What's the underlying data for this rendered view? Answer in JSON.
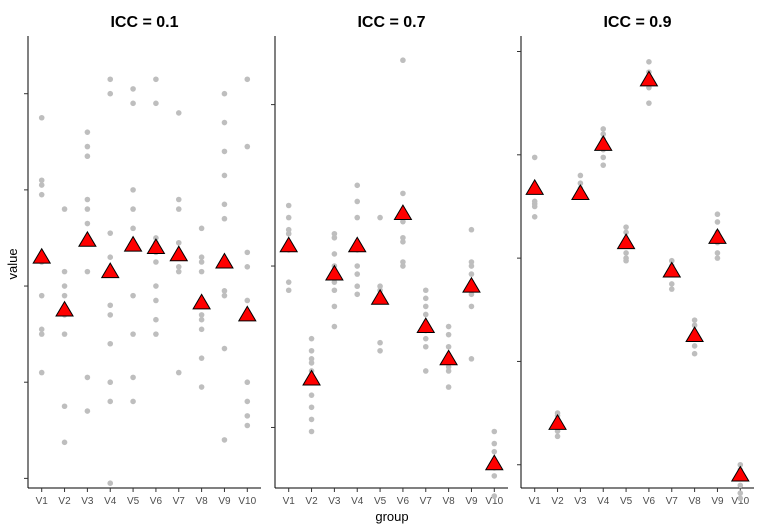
{
  "chart_data": {
    "type": "scatter",
    "xlabel": "group",
    "ylabel": "value",
    "categories": [
      "V1",
      "V2",
      "V3",
      "V4",
      "V5",
      "V6",
      "V7",
      "V8",
      "V9",
      "V10"
    ],
    "colors": {
      "raw_points": "#bebebe",
      "group_means": "#ff0000",
      "marker_outline": "#000000",
      "axis": "#000000"
    },
    "y_tick_labels_shown": false,
    "panels": [
      {
        "title": "ICC =  0.1",
        "ylim": [
          -4.2,
          5.2
        ],
        "means": [
          0.6,
          -0.5,
          0.95,
          0.3,
          0.85,
          0.8,
          0.65,
          -0.35,
          0.5,
          -0.6
        ],
        "points": [
          [
            3.5,
            2.2,
            2.1,
            1.9,
            0.5,
            -0.2,
            -0.9,
            -1.0,
            -1.8
          ],
          [
            1.6,
            0.3,
            0.0,
            -0.2,
            -0.6,
            -1.0,
            -2.5,
            -3.25
          ],
          [
            3.2,
            2.9,
            2.7,
            1.8,
            1.6,
            1.3,
            1.0,
            0.3,
            -1.9,
            -2.6
          ],
          [
            4.3,
            4.0,
            1.1,
            0.6,
            -0.4,
            -0.6,
            -1.2,
            -2.0,
            -2.4,
            -4.1
          ],
          [
            4.1,
            3.8,
            2.0,
            1.6,
            1.2,
            0.9,
            -0.2,
            -1.0,
            -1.9,
            -2.4
          ],
          [
            4.3,
            3.8,
            1.0,
            0.9,
            0.7,
            0.5,
            0.0,
            -0.3,
            -0.7,
            -1.0
          ],
          [
            3.6,
            1.8,
            1.6,
            0.9,
            0.4,
            0.3,
            -1.8
          ],
          [
            1.2,
            0.6,
            0.5,
            0.3,
            -0.6,
            -0.7,
            -0.9,
            -1.5,
            -2.1
          ],
          [
            4.0,
            3.4,
            2.8,
            2.3,
            1.7,
            1.4,
            -0.1,
            -0.2,
            -1.3,
            -3.2
          ],
          [
            4.3,
            2.9,
            0.7,
            0.4,
            -0.3,
            -2.0,
            -2.4,
            -2.7,
            -2.9
          ]
        ]
      },
      {
        "title": "ICC =  0.7",
        "ylim": [
          -2.75,
          2.85
        ],
        "means": [
          0.25,
          -1.4,
          -0.1,
          0.25,
          -0.4,
          0.65,
          -0.75,
          -1.15,
          -0.25,
          -2.45
        ],
        "points": [
          [
            0.75,
            0.6,
            0.45,
            0.4,
            0.3,
            0.2,
            -0.2,
            -0.3
          ],
          [
            -0.9,
            -1.05,
            -1.15,
            -1.2,
            -1.3,
            -1.4,
            -1.6,
            -1.75,
            -1.9,
            -2.05
          ],
          [
            0.4,
            0.35,
            0.15,
            0.0,
            -0.05,
            -0.2,
            -0.3,
            -0.5,
            -0.75
          ],
          [
            1.0,
            0.8,
            0.6,
            0.3,
            0.2,
            0.0,
            -0.1,
            -0.25,
            -0.35
          ],
          [
            0.6,
            -0.25,
            -0.3,
            -0.35,
            -0.95,
            -1.05
          ],
          [
            2.55,
            0.9,
            0.55,
            0.35,
            0.3,
            0.05,
            0.0
          ],
          [
            -0.3,
            -0.4,
            -0.5,
            -0.6,
            -0.7,
            -0.8,
            -0.9,
            -1.0,
            -1.3
          ],
          [
            -0.75,
            -0.85,
            -1.0,
            -1.1,
            -1.25,
            -1.3,
            -1.5
          ],
          [
            0.45,
            0.05,
            0.0,
            -0.1,
            -0.2,
            -0.35,
            -0.5,
            -1.15
          ],
          [
            -2.05,
            -2.2,
            -2.3,
            -2.4,
            -2.5,
            -2.6,
            -2.85
          ]
        ]
      },
      {
        "title": "ICC =  0.9",
        "ylim": [
          -4.45,
          4.3
        ],
        "means": [
          1.35,
          -3.2,
          1.25,
          2.2,
          0.3,
          3.45,
          -0.25,
          -1.5,
          0.4,
          -4.2
        ],
        "points": [
          [
            1.95,
            1.4,
            1.1,
            1.05,
            1.0,
            0.8
          ],
          [
            -3.0,
            -3.05,
            -3.15,
            -3.25,
            -3.3,
            -3.35,
            -3.45
          ],
          [
            1.6,
            1.45,
            1.35,
            1.2
          ],
          [
            2.5,
            2.4,
            2.3,
            2.1,
            1.95,
            1.8
          ],
          [
            0.6,
            0.5,
            0.3,
            0.1,
            0.0,
            -0.05
          ],
          [
            3.8,
            3.6,
            3.4,
            3.3,
            3.0
          ],
          [
            -0.05,
            -0.15,
            -0.3,
            -0.5,
            -0.6
          ],
          [
            -1.2,
            -1.3,
            -1.5,
            -1.7,
            -1.85
          ],
          [
            0.85,
            0.7,
            0.5,
            0.3,
            0.1,
            0.0
          ],
          [
            -4.0,
            -4.1,
            -4.2,
            -4.4,
            -4.55,
            -4.65
          ]
        ]
      }
    ]
  }
}
